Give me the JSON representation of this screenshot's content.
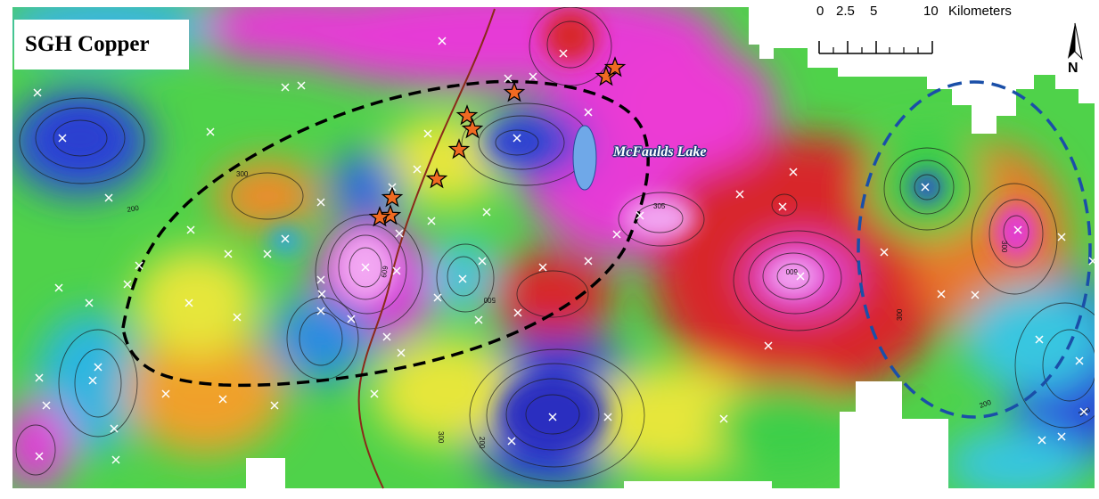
{
  "map": {
    "title": "SGH Copper",
    "lake_label": "McFaulds Lake",
    "north_letter": "N",
    "scale": {
      "ticks": [
        "0",
        "2.5",
        "5",
        "10"
      ],
      "unit": "Kilometers"
    },
    "contour_labels": [
      "200",
      "300",
      "305",
      "500",
      "600",
      "609",
      "200",
      "300",
      "200",
      "300",
      "300",
      "200"
    ],
    "colors": {
      "low": "#2a3fd0",
      "cyan": "#22c8d8",
      "green": "#3ccf4a",
      "yellow": "#e6e63a",
      "orange": "#f08a2a",
      "red": "#d8282a",
      "magenta": "#e23ad8",
      "pink": "#f2a6f2",
      "anomaly_outline_black": "#000000",
      "anomaly_outline_blue": "#1a4fa8",
      "fault_line": "#8a2a1a",
      "star": "#f06a22",
      "lake": "#6fa8e8"
    }
  }
}
